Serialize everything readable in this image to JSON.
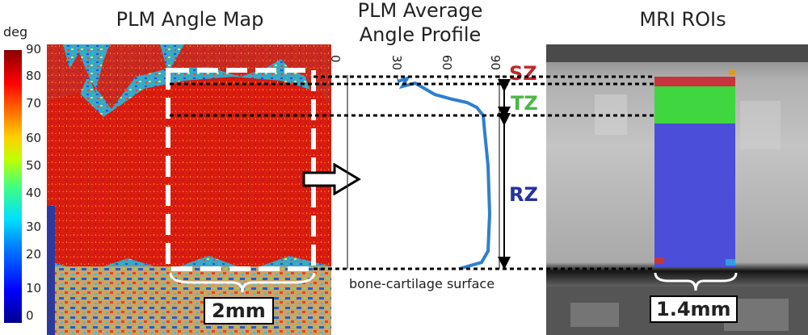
{
  "titles": {
    "angle_map": "PLM Angle Map",
    "profile_line1": "PLM Average",
    "profile_line2": "Angle Profile",
    "mri": "MRI ROIs"
  },
  "colorbar": {
    "unit": "deg",
    "ticks": [
      "90",
      "80",
      "70",
      "60",
      "50",
      "40",
      "30",
      "20",
      "10",
      "0"
    ],
    "colormap": "jet"
  },
  "profile": {
    "ticks": [
      "0",
      "30",
      "60",
      "90"
    ],
    "surface_label": "bone-cartilage surface",
    "line_color": "#2e7fd0",
    "arrow_icon": "right-arrow-icon"
  },
  "zones": [
    {
      "name": "SZ",
      "color": "#c0272d"
    },
    {
      "name": "TZ",
      "color": "#4ab844"
    },
    {
      "name": "RZ",
      "color": "#2332a0"
    }
  ],
  "scale_bars": {
    "plm": "2mm",
    "mri": "1.4mm"
  },
  "roi_colors": {
    "sz": "#c8343c",
    "tz": "#3fd63f",
    "rz": "#4a4ed8"
  }
}
